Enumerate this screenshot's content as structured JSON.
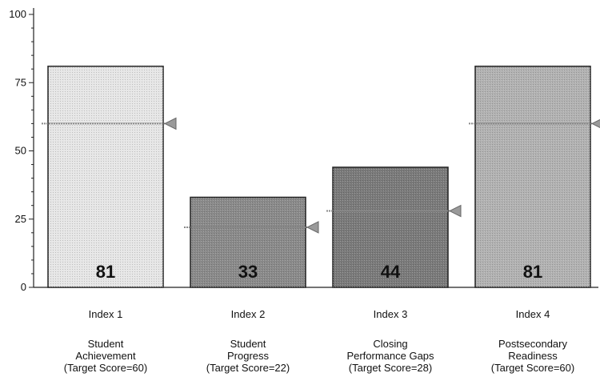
{
  "chart_data": {
    "type": "bar",
    "ylim": [
      0,
      100
    ],
    "yticks": [
      "0",
      "25",
      "50",
      "75",
      "100"
    ],
    "categories": [
      "Index 1",
      "Index 2",
      "Index 3",
      "Index 4"
    ],
    "descriptions": [
      [
        "Student",
        "Achievement",
        "(Target Score=60)"
      ],
      [
        "Student",
        "Progress",
        "(Target Score=22)"
      ],
      [
        "Closing",
        "Performance Gaps",
        "(Target Score=28)"
      ],
      [
        "Postsecondary",
        "Readiness",
        "(Target Score=60)"
      ]
    ],
    "values": [
      81,
      33,
      44,
      81
    ],
    "value_labels": [
      "81",
      "33",
      "44",
      "81"
    ],
    "targets": [
      60,
      22,
      28,
      60
    ],
    "bar_colors": [
      "#e6e6e6",
      "#8a8a8a",
      "#7a7a7a",
      "#b2b2b2"
    ],
    "target_color": "#888888",
    "grid": false,
    "legend": "none"
  }
}
